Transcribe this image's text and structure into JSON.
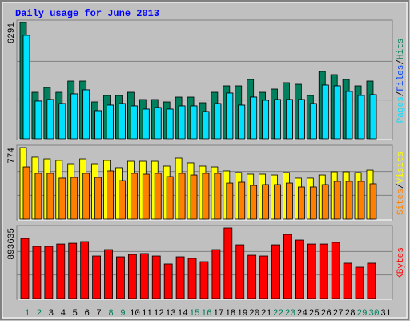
{
  "chart_data": [
    {
      "type": "bar",
      "title": "Daily usage for June 2013",
      "ylim": [
        0,
        6291
      ],
      "yticks": [
        6291
      ],
      "separator": "/",
      "series": [
        {
          "name": "Hits",
          "color": "#00805c",
          "values": [
            6291,
            2516,
            2777,
            2516,
            3124,
            3124,
            1996,
            2343,
            2343,
            2516,
            2126,
            2126,
            1996,
            2256,
            2256,
            1953,
            2516,
            2864,
            2864,
            3211,
            2516,
            2690,
            3038,
            2950,
            2343,
            3645,
            3471,
            3211,
            2864,
            3124,
            null
          ]
        },
        {
          "name": "Files",
          "color": "#0040ff",
          "values": [
            5597,
            2040,
            2126,
            1909,
            2430,
            2647,
            1519,
            1822,
            1909,
            1779,
            1605,
            1692,
            1605,
            1779,
            1779,
            1475,
            1909,
            2473,
            1822,
            2256,
            2083,
            2126,
            2126,
            2126,
            1909,
            2907,
            2864,
            2560,
            2343,
            2386,
            null
          ]
        },
        {
          "name": "Pages",
          "color": "#00e0ff",
          "values": [
            5597,
            2040,
            2126,
            1909,
            2430,
            2647,
            1519,
            1822,
            1909,
            1779,
            1605,
            1692,
            1605,
            1779,
            1779,
            1475,
            1909,
            2473,
            1822,
            2256,
            2083,
            2126,
            2126,
            2126,
            1909,
            2907,
            2864,
            2560,
            2343,
            2386,
            null
          ]
        }
      ]
    },
    {
      "type": "bar",
      "ylim": [
        0,
        774
      ],
      "yticks": [
        774
      ],
      "series": [
        {
          "name": "Visits",
          "color": "#ffff00",
          "values": [
            774,
            670,
            652,
            635,
            600,
            652,
            600,
            635,
            557,
            626,
            626,
            626,
            574,
            661,
            609,
            574,
            565,
            522,
            505,
            487,
            487,
            478,
            505,
            444,
            444,
            478,
            513,
            513,
            505,
            530,
            null
          ]
        },
        {
          "name": "Sites",
          "color": "#ff8000",
          "values": [
            565,
            496,
            496,
            444,
            452,
            496,
            452,
            522,
            417,
            496,
            487,
            496,
            461,
            496,
            478,
            496,
            496,
            391,
            400,
            365,
            374,
            374,
            391,
            348,
            348,
            374,
            409,
            409,
            409,
            383,
            null
          ]
        }
      ]
    },
    {
      "type": "bar",
      "ylim": [
        0,
        893635
      ],
      "yticks": [
        893635
      ],
      "categories": [
        "1",
        "2",
        "3",
        "4",
        "5",
        "6",
        "7",
        "8",
        "9",
        "10",
        "11",
        "12",
        "13",
        "14",
        "15",
        "16",
        "17",
        "18",
        "19",
        "20",
        "21",
        "22",
        "23",
        "24",
        "25",
        "26",
        "27",
        "28",
        "29",
        "30",
        "31"
      ],
      "category_colors": [
        "#00805c",
        "#00805c",
        "#000000",
        "#000000",
        "#000000",
        "#000000",
        "#000000",
        "#00805c",
        "#00805c",
        "#000000",
        "#000000",
        "#000000",
        "#000000",
        "#000000",
        "#00805c",
        "#00805c",
        "#000000",
        "#000000",
        "#000000",
        "#000000",
        "#000000",
        "#00805c",
        "#00805c",
        "#000000",
        "#000000",
        "#000000",
        "#000000",
        "#000000",
        "#00805c",
        "#00805c",
        "#000000"
      ],
      "series": [
        {
          "name": "KBytes",
          "color": "#ff0000",
          "values": [
            761000,
            660000,
            660000,
            690000,
            700000,
            721000,
            538000,
            619000,
            528000,
            558000,
            569000,
            538000,
            437000,
            528000,
            508000,
            467000,
            619000,
            893635,
            680000,
            548000,
            538000,
            680000,
            812000,
            741000,
            690000,
            690000,
            711000,
            447000,
            396000,
            447000,
            null
          ]
        }
      ]
    }
  ]
}
